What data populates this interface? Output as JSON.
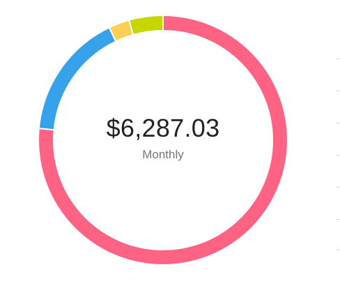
{
  "summary": {
    "amount": "$6,287.03",
    "period": "Monthly"
  },
  "chart_data": {
    "type": "pie",
    "variant": "donut",
    "series": [
      {
        "color": "#ff6384",
        "value": 0.765
      },
      {
        "color": "#36a2eb",
        "value": 0.164
      },
      {
        "color": "#ffce56",
        "value": 0.027
      },
      {
        "color": "#c5d600",
        "value": 0.044
      }
    ]
  }
}
